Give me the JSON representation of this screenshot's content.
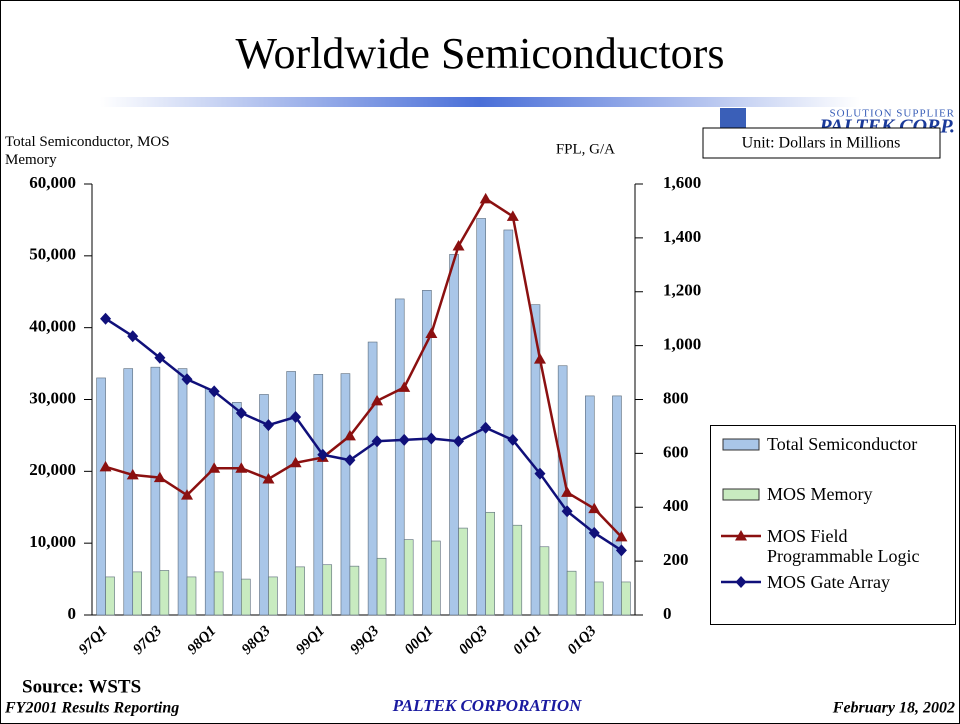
{
  "title": "Worldwide Semiconductors",
  "logo": {
    "tagline": "SOLUTION SUPPLIER",
    "name": "PALTEK CORP."
  },
  "unit_note": "Unit: Dollars in Millions",
  "source": "Source: WSTS",
  "footer": {
    "left": "FY2001 Results Reporting",
    "center": "PALTEK CORPORATION",
    "right": "February 18, 2002"
  },
  "chart_data": {
    "type": "bar",
    "ylabel": "Total Semiconductor, MOS Memory",
    "y2label": "FPL, G/A",
    "categories": [
      "97Q1",
      null,
      "97Q3",
      null,
      "98Q1",
      null,
      "98Q3",
      null,
      "99Q1",
      null,
      "99Q3",
      null,
      "00Q1",
      null,
      "00Q3",
      null,
      "01Q1",
      null,
      "01Q3",
      null
    ],
    "ylim": [
      0,
      60000
    ],
    "yticks": [
      0,
      {
        "value": 10000,
        "label": "10,000"
      },
      {
        "value": 20000,
        "label": "20,000"
      },
      {
        "value": 30000,
        "label": "30,000"
      },
      {
        "value": 40000,
        "label": "40,000"
      },
      {
        "value": 50000,
        "label": "50,000"
      },
      {
        "value": 60000,
        "label": "60,000"
      }
    ],
    "y2lim": [
      0,
      1600
    ],
    "y2ticks": [
      0,
      200,
      400,
      600,
      800,
      {
        "value": 1000,
        "label": "1,000"
      },
      {
        "value": 1200,
        "label": "1,200"
      },
      {
        "value": 1400,
        "label": "1,400"
      },
      {
        "value": 1600,
        "label": "1,600"
      }
    ],
    "legend": "right",
    "series": [
      {
        "name": "Total Semiconductor",
        "type": "bar",
        "color": "#a9c6e8",
        "values": [
          33000,
          34300,
          34500,
          34300,
          31500,
          29600,
          30700,
          33900,
          33500,
          33600,
          38000,
          44000,
          45200,
          50200,
          55200,
          53600,
          43200,
          34700,
          30500,
          30500
        ]
      },
      {
        "name": "MOS Memory",
        "type": "bar",
        "color": "#c8ebc0",
        "values": [
          5300,
          6000,
          6200,
          5300,
          6000,
          5000,
          5300,
          6700,
          7000,
          6800,
          7900,
          10500,
          10300,
          12100,
          14300,
          12500,
          9500,
          6100,
          4600,
          4600
        ]
      },
      {
        "name": "MOS Field Programmable Logic",
        "type": "line",
        "axis": "y2",
        "marker": "triangle",
        "color": "#8b1010",
        "values": [
          550,
          520,
          510,
          445,
          545,
          545,
          505,
          565,
          585,
          665,
          795,
          845,
          1045,
          1370,
          1545,
          1480,
          950,
          455,
          395,
          290
        ]
      },
      {
        "name": "MOS Gate Array",
        "type": "line",
        "axis": "y2",
        "marker": "diamond",
        "color": "#10107a",
        "values": [
          1100,
          1035,
          955,
          875,
          830,
          750,
          705,
          735,
          595,
          575,
          645,
          650,
          655,
          645,
          695,
          650,
          525,
          385,
          305,
          240
        ]
      }
    ]
  }
}
